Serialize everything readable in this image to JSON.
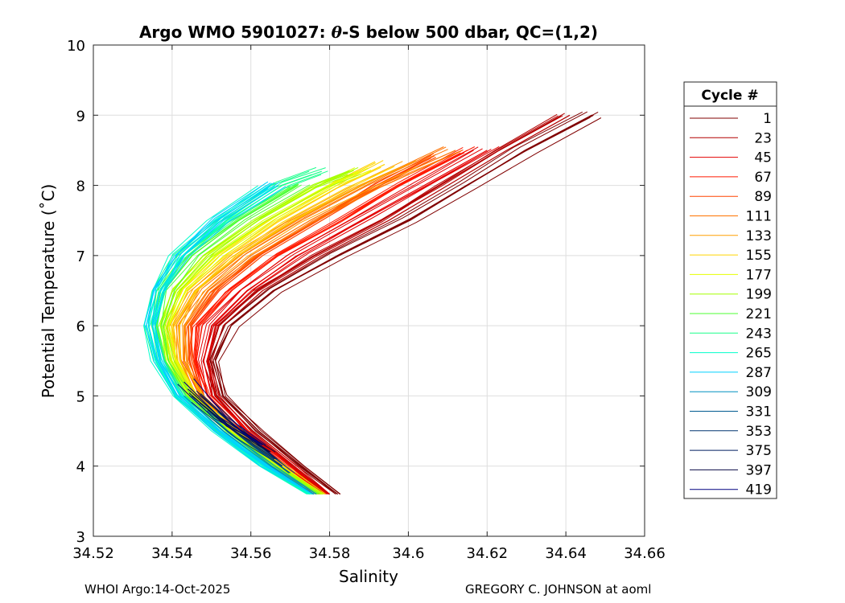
{
  "chart_data": {
    "type": "line",
    "title_prefix": "Argo WMO 5901027: ",
    "title_symbol": "θ",
    "title_suffix": "-S below 500 dbar,  QC=(1,2)",
    "xlabel": "Salinity",
    "ylabel": "Potential Temperature (˚C)",
    "xlim": [
      34.52,
      34.66
    ],
    "ylim": [
      3,
      10
    ],
    "xticks": [
      34.52,
      34.54,
      34.56,
      34.58,
      34.6,
      34.62,
      34.64,
      34.66
    ],
    "xtick_labels": [
      "34.52",
      "34.54",
      "34.56",
      "34.58",
      "34.6",
      "34.62",
      "34.64",
      "34.66"
    ],
    "yticks": [
      3,
      4,
      5,
      6,
      7,
      8,
      9,
      10
    ],
    "ytick_labels": [
      "3",
      "4",
      "5",
      "6",
      "7",
      "8",
      "9",
      "10"
    ],
    "grid": true,
    "legend_title": "Cycle #",
    "legend_position": "right-outside",
    "series": [
      {
        "name": "1",
        "color": "#800000",
        "profile": {
          "theta": [
            3.6,
            4.0,
            4.5,
            5.0,
            5.5,
            6.0,
            6.5,
            7.0,
            7.5,
            8.0,
            8.5,
            9.0
          ],
          "salinity": [
            34.582,
            34.573,
            34.562,
            34.553,
            34.551,
            34.555,
            34.566,
            34.582,
            34.6,
            34.615,
            34.63,
            34.647
          ]
        }
      },
      {
        "name": "23",
        "color": "#b30000",
        "profile": {
          "theta": [
            3.6,
            4.0,
            4.5,
            5.0,
            5.5,
            6.0,
            6.5,
            7.0,
            7.5,
            8.0,
            8.5,
            9.0
          ],
          "salinity": [
            34.58,
            34.571,
            34.56,
            34.552,
            34.55,
            34.553,
            34.563,
            34.578,
            34.595,
            34.61,
            34.625,
            34.641
          ]
        }
      },
      {
        "name": "45",
        "color": "#e30000",
        "profile": {
          "theta": [
            3.6,
            4.0,
            4.5,
            5.0,
            5.5,
            6.0,
            6.5,
            7.0,
            7.5,
            8.0,
            8.5
          ],
          "salinity": [
            34.579,
            34.57,
            34.559,
            34.55,
            34.548,
            34.55,
            34.559,
            34.572,
            34.588,
            34.604,
            34.62
          ]
        }
      },
      {
        "name": "67",
        "color": "#ff1a00",
        "profile": {
          "theta": [
            3.6,
            4.0,
            4.5,
            5.0,
            5.5,
            6.0,
            6.5,
            7.0,
            7.5,
            8.0,
            8.5
          ],
          "salinity": [
            34.578,
            34.569,
            34.558,
            34.549,
            34.546,
            34.547,
            34.555,
            34.567,
            34.583,
            34.598,
            34.615
          ]
        }
      },
      {
        "name": "89",
        "color": "#ff4500",
        "profile": {
          "theta": [
            3.6,
            4.0,
            4.5,
            5.0,
            5.5,
            6.0,
            6.5,
            7.0,
            7.5,
            8.0,
            8.4
          ],
          "salinity": [
            34.577,
            34.568,
            34.557,
            34.548,
            34.545,
            34.545,
            34.552,
            34.563,
            34.578,
            34.593,
            34.607
          ]
        }
      },
      {
        "name": "111",
        "color": "#ff7300",
        "profile": {
          "theta": [
            3.6,
            4.0,
            4.5,
            5.0,
            5.5,
            6.0,
            6.5,
            7.0,
            7.5,
            8.0,
            8.5
          ],
          "salinity": [
            34.577,
            34.567,
            34.556,
            34.547,
            34.543,
            34.543,
            34.549,
            34.56,
            34.575,
            34.592,
            34.612
          ]
        }
      },
      {
        "name": "133",
        "color": "#ffa000",
        "profile": {
          "theta": [
            3.6,
            4.0,
            4.5,
            5.0,
            5.5,
            6.0,
            6.5,
            7.0,
            7.5,
            8.0,
            8.3
          ],
          "salinity": [
            34.577,
            34.567,
            34.556,
            34.546,
            34.542,
            34.541,
            34.546,
            34.557,
            34.571,
            34.588,
            34.6
          ]
        }
      },
      {
        "name": "155",
        "color": "#ffd400",
        "profile": {
          "theta": [
            3.6,
            4.0,
            4.5,
            5.0,
            5.5,
            6.0,
            6.5,
            7.0,
            7.5,
            8.0,
            8.3
          ],
          "salinity": [
            34.578,
            34.568,
            34.556,
            34.546,
            34.541,
            34.54,
            34.544,
            34.554,
            34.567,
            34.583,
            34.594
          ]
        }
      },
      {
        "name": "177",
        "color": "#e6ff00",
        "profile": {
          "theta": [
            3.6,
            4.0,
            4.5,
            5.0,
            5.5,
            6.0,
            6.5,
            7.0,
            7.5,
            8.0,
            8.2
          ],
          "salinity": [
            34.578,
            34.567,
            34.555,
            34.545,
            34.54,
            34.538,
            34.542,
            34.551,
            34.564,
            34.58,
            34.588
          ]
        }
      },
      {
        "name": "199",
        "color": "#a6ff00",
        "profile": {
          "theta": [
            3.6,
            4.0,
            4.5,
            5.0,
            5.5,
            6.0,
            6.5,
            7.0,
            7.5,
            8.0,
            8.2
          ],
          "salinity": [
            34.577,
            34.566,
            34.554,
            34.544,
            34.539,
            34.537,
            34.54,
            34.548,
            34.561,
            34.576,
            34.585
          ]
        }
      },
      {
        "name": "221",
        "color": "#4dff33",
        "profile": {
          "theta": [
            3.6,
            4.0,
            4.5,
            5.0,
            5.5,
            6.0,
            6.5,
            7.0,
            7.5,
            8.0
          ],
          "salinity": [
            34.576,
            34.565,
            34.553,
            34.543,
            34.538,
            34.536,
            34.538,
            34.545,
            34.557,
            34.572
          ]
        }
      },
      {
        "name": "243",
        "color": "#1aff8c",
        "profile": {
          "theta": [
            3.6,
            4.0,
            4.5,
            5.0,
            5.5,
            6.0,
            6.5,
            7.0,
            7.5,
            8.0,
            8.2
          ],
          "salinity": [
            34.575,
            34.564,
            34.552,
            34.542,
            34.537,
            34.535,
            34.537,
            34.543,
            34.554,
            34.568,
            34.578
          ]
        }
      },
      {
        "name": "265",
        "color": "#00ffcc",
        "profile": {
          "theta": [
            3.6,
            4.0,
            4.5,
            5.0,
            5.5,
            6.0,
            6.5,
            7.0,
            7.5,
            8.0
          ],
          "salinity": [
            34.575,
            34.563,
            34.551,
            34.541,
            34.536,
            34.534,
            34.536,
            34.541,
            34.551,
            34.564
          ]
        }
      },
      {
        "name": "287",
        "color": "#00d0ff",
        "profile": {
          "theta": [
            3.6,
            4.0,
            4.5,
            5.0,
            5.5,
            6.0,
            6.5,
            7.0,
            7.5,
            8.0
          ],
          "salinity": [
            34.576,
            34.564,
            34.552,
            34.542,
            34.537,
            34.535,
            34.537,
            34.543,
            34.553,
            34.567
          ]
        }
      },
      {
        "name": "309",
        "color": "#0090c0",
        "profile": {
          "theta": [
            3.6,
            4.0,
            4.5,
            5.0
          ],
          "salinity": [
            34.576,
            34.565,
            34.553,
            34.543
          ]
        }
      },
      {
        "name": "331",
        "color": "#005a90",
        "profile": {
          "theta": [
            3.9,
            4.3,
            4.8
          ],
          "salinity": [
            34.57,
            34.56,
            34.549
          ]
        }
      },
      {
        "name": "353",
        "color": "#003570",
        "profile": {
          "theta": [
            4.0,
            4.4,
            4.9
          ],
          "salinity": [
            34.568,
            34.558,
            34.547
          ]
        }
      },
      {
        "name": "375",
        "color": "#001d60",
        "profile": {
          "theta": [
            4.1,
            4.5,
            5.0
          ],
          "salinity": [
            34.566,
            34.556,
            34.545
          ]
        }
      },
      {
        "name": "397",
        "color": "#0a0a45",
        "profile": {
          "theta": [
            4.2,
            4.6,
            5.1
          ],
          "salinity": [
            34.565,
            34.554,
            34.544
          ]
        }
      },
      {
        "name": "419",
        "color": "#000080",
        "profile": {
          "theta": [
            4.3,
            4.7,
            5.2
          ],
          "salinity": [
            34.563,
            34.552,
            34.543
          ]
        }
      }
    ]
  },
  "footer": {
    "left": "WHOI Argo:14-Oct-2025",
    "right": "GREGORY C. JOHNSON at aoml"
  }
}
